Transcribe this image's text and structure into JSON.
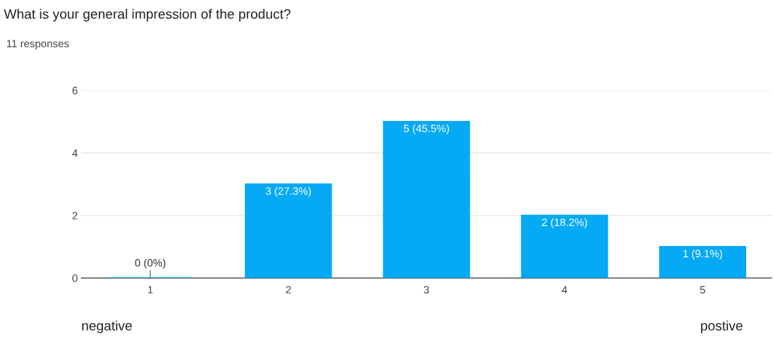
{
  "chart_data": {
    "type": "bar",
    "title": "What is your general impression of the product?",
    "subtitle": "11 responses",
    "categories": [
      "1",
      "2",
      "3",
      "4",
      "5"
    ],
    "values": [
      0,
      3,
      5,
      2,
      1
    ],
    "value_labels": [
      "0 (0%)",
      "3 (27.3%)",
      "5 (45.5%)",
      "2 (18.2%)",
      "1 (9.1%)"
    ],
    "color": "#05a9f4",
    "ylim": [
      0,
      6
    ],
    "yticks": [
      0,
      2,
      4,
      6
    ],
    "grid": "y",
    "annotations": [
      "negative",
      "postive"
    ]
  }
}
